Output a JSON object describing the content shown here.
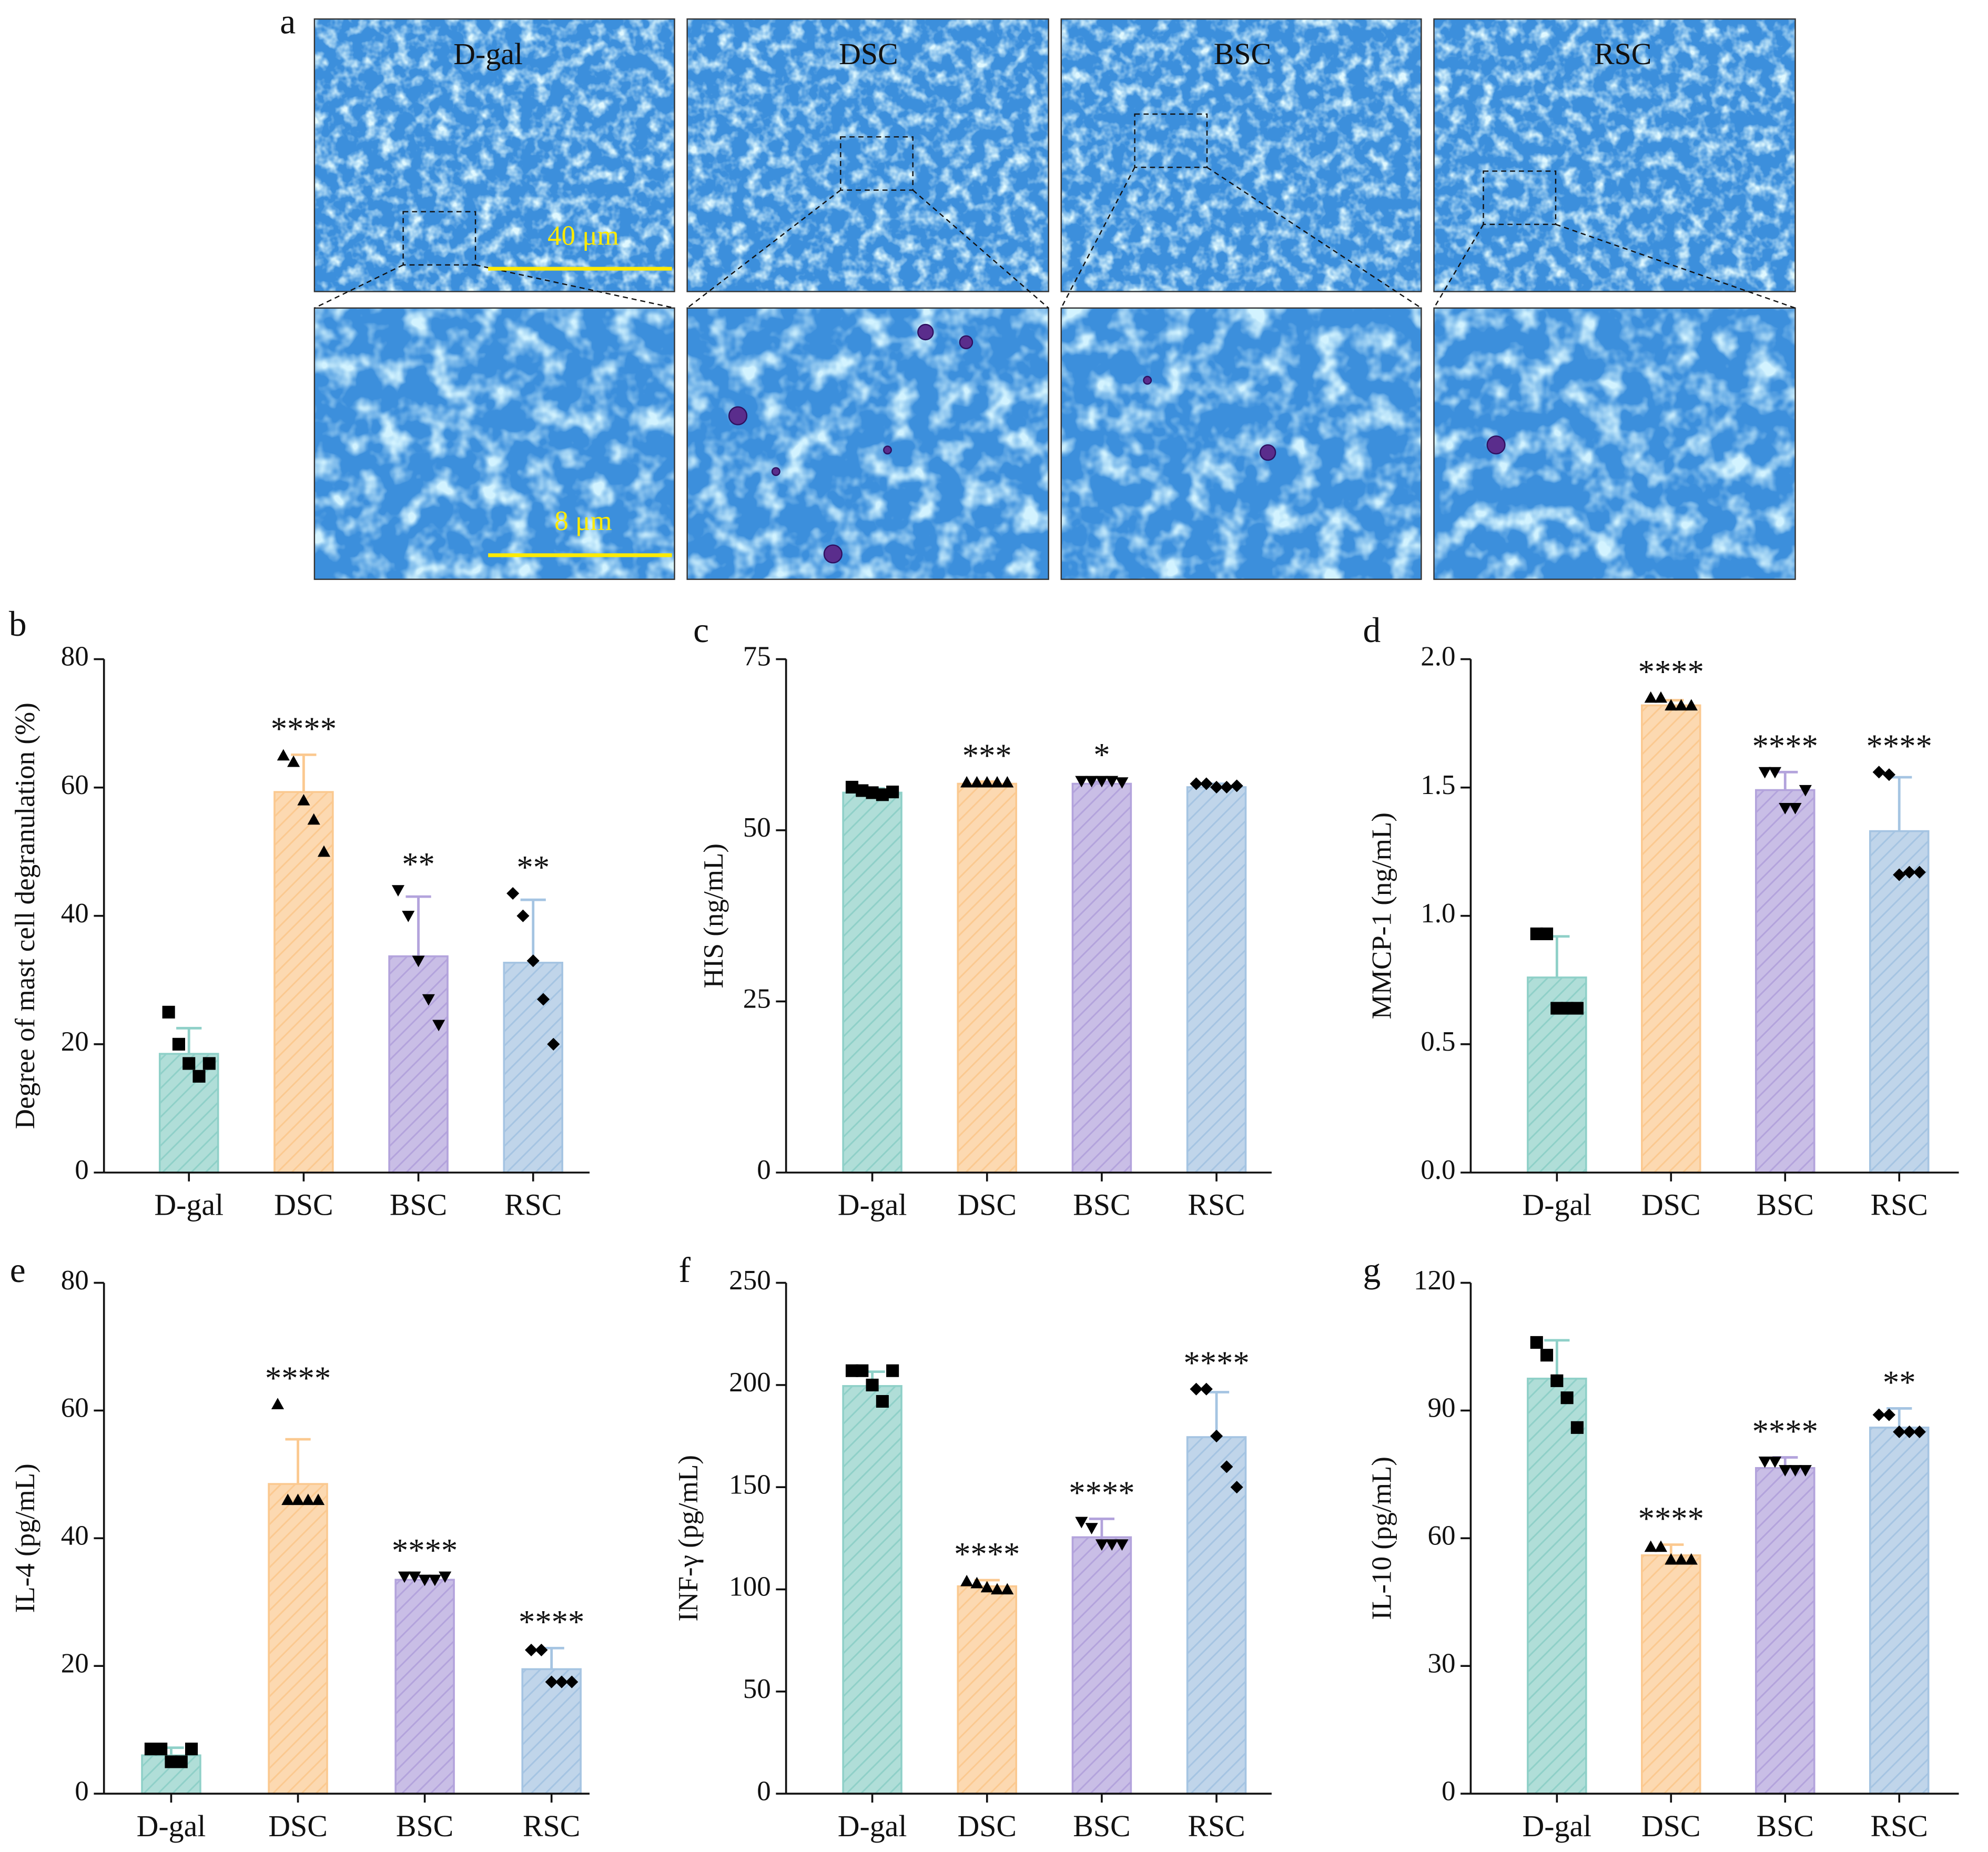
{
  "images": {
    "label": "a",
    "groups": [
      "D-gal",
      "DSC",
      "BSC",
      "RSC"
    ],
    "scale_bars": [
      "40 μm",
      "8 μm"
    ]
  },
  "chart_data": [
    {
      "type": "bar",
      "panel": "b",
      "y_label": "Degree of mast cell degranulation (%)",
      "categories": [
        "D-gal",
        "DSC",
        "BSC",
        "RSC"
      ],
      "values": [
        18.5,
        59.3,
        33.7,
        32.7
      ],
      "errors": [
        4,
        5.8,
        9.3,
        9.8
      ],
      "points": [
        [
          25,
          20,
          17,
          15,
          17
        ],
        [
          65,
          64,
          58,
          55,
          50
        ],
        [
          44,
          40,
          33,
          27,
          23
        ],
        [
          43.5,
          40,
          33,
          27,
          20
        ]
      ],
      "annotations": [
        null,
        "****",
        "**",
        "**"
      ],
      "colors": [
        "#8fd0c8",
        "#fbc990",
        "#b3a3dc",
        "#a5c4e2"
      ],
      "markers": [
        "square",
        "triangle-up",
        "triangle-down",
        "diamond"
      ],
      "ylim": [
        0,
        80
      ],
      "yticks": [
        0,
        20,
        40,
        60,
        80
      ]
    },
    {
      "type": "bar",
      "panel": "c",
      "y_label": "HIS (ng/mL)",
      "categories": [
        "D-gal",
        "DSC",
        "BSC",
        "RSC"
      ],
      "values": [
        55.5,
        56.8,
        56.8,
        56.3
      ],
      "errors": [
        0.6,
        0.3,
        0.3,
        0.5
      ],
      "points": [
        [
          56.3,
          55.8,
          55.5,
          55.2,
          55.6
        ],
        [
          57,
          57,
          57,
          57,
          57
        ],
        [
          57.2,
          57.2,
          57.2,
          57.2,
          57
        ],
        [
          56.8,
          56.8,
          56.3,
          56.3,
          56.5
        ]
      ],
      "annotations": [
        null,
        "***",
        "*",
        null
      ],
      "colors": [
        "#8fd0c8",
        "#fbc990",
        "#b3a3dc",
        "#a5c4e2"
      ],
      "markers": [
        "square",
        "triangle-up",
        "triangle-down",
        "diamond"
      ],
      "ylim": [
        0,
        75
      ],
      "yticks": [
        0,
        25,
        50,
        75
      ]
    },
    {
      "type": "bar",
      "panel": "d",
      "y_label": "MMCP-1 (ng/mL)",
      "categories": [
        "D-gal",
        "DSC",
        "BSC",
        "RSC"
      ],
      "values": [
        0.76,
        1.82,
        1.49,
        1.33
      ],
      "errors": [
        0.16,
        0.02,
        0.07,
        0.21
      ],
      "points": [
        [
          0.93,
          0.93,
          0.64,
          0.64,
          0.64
        ],
        [
          1.85,
          1.85,
          1.82,
          1.82,
          1.82
        ],
        [
          1.56,
          1.56,
          1.42,
          1.42,
          1.49
        ],
        [
          1.56,
          1.55,
          1.16,
          1.17,
          1.17
        ]
      ],
      "annotations": [
        null,
        "****",
        "****",
        "****"
      ],
      "colors": [
        "#8fd0c8",
        "#fbc990",
        "#b3a3dc",
        "#a5c4e2"
      ],
      "markers": [
        "square",
        "triangle-up",
        "triangle-down",
        "diamond"
      ],
      "ylim": [
        0,
        2
      ],
      "yticks": [
        {
          "value": 0,
          "label": "0.0"
        },
        0.5,
        {
          "value": 1,
          "label": "1.0"
        },
        1.5,
        {
          "value": 2,
          "label": "2.0"
        }
      ]
    },
    {
      "type": "bar",
      "panel": "e",
      "y_label": "IL-4 (pg/mL)",
      "categories": [
        "D-gal",
        "DSC",
        "BSC",
        "RSC"
      ],
      "values": [
        6,
        48.5,
        33.5,
        19.5
      ],
      "errors": [
        1.2,
        7,
        0.5,
        3.3
      ],
      "points": [
        [
          7,
          7,
          5,
          5,
          7
        ],
        [
          61,
          46,
          46,
          46,
          46
        ],
        [
          34,
          34,
          33.5,
          33.5,
          34
        ],
        [
          22.5,
          22.5,
          17.5,
          17.5,
          17.5
        ]
      ],
      "annotations": [
        null,
        "****",
        "****",
        "****"
      ],
      "colors": [
        "#8fd0c8",
        "#fbc990",
        "#b3a3dc",
        "#a5c4e2"
      ],
      "markers": [
        "square",
        "triangle-up",
        "triangle-down",
        "diamond"
      ],
      "ylim": [
        0,
        80
      ],
      "yticks": [
        0,
        20,
        40,
        60,
        80
      ]
    },
    {
      "type": "bar",
      "panel": "f",
      "y_label": "INF-γ (pg/mL)",
      "categories": [
        "D-gal",
        "DSC",
        "BSC",
        "RSC"
      ],
      "values": [
        199.5,
        101.5,
        125.5,
        174.5
      ],
      "errors": [
        7,
        3,
        9,
        22
      ],
      "points": [
        [
          207,
          207,
          200,
          192,
          207
        ],
        [
          104,
          103,
          101,
          100,
          100
        ],
        [
          133,
          130,
          122,
          122,
          122
        ],
        [
          198,
          198,
          175,
          160,
          150
        ]
      ],
      "annotations": [
        null,
        "****",
        "****",
        "****"
      ],
      "colors": [
        "#8fd0c8",
        "#fbc990",
        "#b3a3dc",
        "#a5c4e2"
      ],
      "markers": [
        "square",
        "triangle-up",
        "triangle-down",
        "diamond"
      ],
      "ylim": [
        0,
        250
      ],
      "yticks": [
        0,
        50,
        100,
        150,
        200,
        250
      ]
    },
    {
      "type": "bar",
      "panel": "g",
      "y_label": "IL-10 (pg/mL)",
      "categories": [
        "D-gal",
        "DSC",
        "BSC",
        "RSC"
      ],
      "values": [
        97.5,
        56,
        76.5,
        86
      ],
      "errors": [
        9,
        2.5,
        2.5,
        4.5
      ],
      "points": [
        [
          106,
          103,
          97,
          93,
          86
        ],
        [
          58,
          58,
          55,
          55,
          55
        ],
        [
          78,
          78,
          76,
          76,
          76
        ],
        [
          89,
          89,
          85,
          85,
          85
        ]
      ],
      "annotations": [
        null,
        "****",
        "****",
        "**"
      ],
      "colors": [
        "#8fd0c8",
        "#fbc990",
        "#b3a3dc",
        "#a5c4e2"
      ],
      "markers": [
        "square",
        "triangle-up",
        "triangle-down",
        "diamond"
      ],
      "ylim": [
        0,
        120
      ],
      "yticks": [
        0,
        30,
        60,
        90,
        120
      ]
    }
  ]
}
